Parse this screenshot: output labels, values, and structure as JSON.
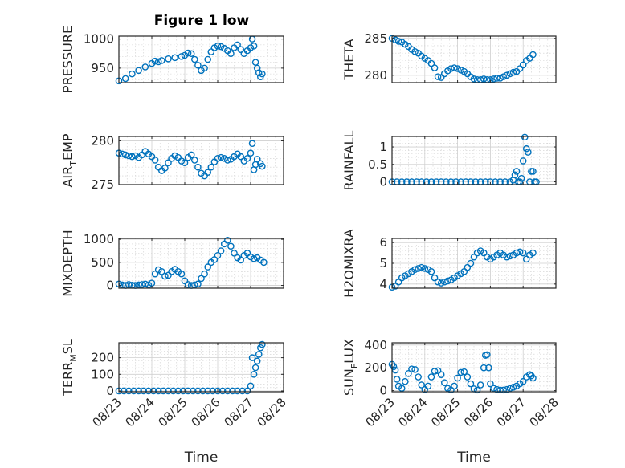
{
  "figure": {
    "title": "Figure 1 low",
    "marker_color": "#0072BD",
    "xlabel_time": "Time"
  },
  "chart_data": [
    {
      "id": "pressure",
      "type": "scatter",
      "title": "Figure 1 low",
      "ylabel": "PRESSURE",
      "ylabel_sub": "",
      "xlabel": "",
      "xtick_labels": [],
      "xlim": [
        "08/23",
        "08/28"
      ],
      "ylim": [
        925,
        1005
      ],
      "yticks": [
        950,
        1000
      ],
      "yticks_labels": [
        "950",
        "1000"
      ],
      "grid": true,
      "series": [
        {
          "x": [
            23.0,
            23.2,
            23.4,
            23.6,
            23.8,
            24.0,
            24.1,
            24.2,
            24.3,
            24.5,
            24.7,
            24.9,
            25.0,
            25.1,
            25.2,
            25.3,
            25.4,
            25.5,
            25.6,
            25.7,
            25.8,
            25.9,
            26.0,
            26.1,
            26.2,
            26.3,
            26.4,
            26.5,
            26.6,
            26.7,
            26.8,
            26.9,
            27.0,
            27.05,
            27.1,
            27.15,
            27.2,
            27.25,
            27.3,
            27.35
          ],
          "y": [
            928,
            932,
            940,
            946,
            952,
            958,
            962,
            961,
            963,
            966,
            968,
            970,
            972,
            976,
            975,
            965,
            955,
            946,
            950,
            965,
            978,
            985,
            988,
            987,
            984,
            980,
            975,
            985,
            990,
            982,
            975,
            980,
            985,
            1000,
            988,
            960,
            950,
            942,
            935,
            940
          ]
        }
      ]
    },
    {
      "id": "theta",
      "type": "scatter",
      "ylabel": "THETA",
      "ylabel_sub": "",
      "xlabel": "",
      "xtick_labels": [],
      "xlim": [
        "08/23",
        "08/28"
      ],
      "ylim": [
        279,
        285.3
      ],
      "yticks": [
        280,
        285
      ],
      "yticks_labels": [
        "280",
        "285"
      ],
      "grid": true,
      "series": [
        {
          "x": [
            23.0,
            23.1,
            23.2,
            23.3,
            23.4,
            23.5,
            23.6,
            23.7,
            23.8,
            23.9,
            24.0,
            24.1,
            24.2,
            24.3,
            24.4,
            24.5,
            24.6,
            24.7,
            24.8,
            24.9,
            25.0,
            25.1,
            25.2,
            25.3,
            25.4,
            25.5,
            25.6,
            25.7,
            25.8,
            25.9,
            26.0,
            26.1,
            26.2,
            26.3,
            26.4,
            26.5,
            26.6,
            26.7,
            26.8,
            26.9,
            27.0,
            27.1,
            27.2,
            27.3
          ],
          "y": [
            285.0,
            284.8,
            284.6,
            284.5,
            284.2,
            283.9,
            283.5,
            283.2,
            283.0,
            282.6,
            282.3,
            282.0,
            281.6,
            281.0,
            279.8,
            279.7,
            280.2,
            280.6,
            280.9,
            281.0,
            280.9,
            280.7,
            280.5,
            280.2,
            279.8,
            279.5,
            279.4,
            279.4,
            279.5,
            279.4,
            279.4,
            279.5,
            279.6,
            279.6,
            279.8,
            280.0,
            280.2,
            280.4,
            280.5,
            280.9,
            281.4,
            282.0,
            282.3,
            282.8
          ]
        }
      ]
    },
    {
      "id": "air_temp",
      "type": "scatter",
      "ylabel": "AIR",
      "ylabel_sub": "T",
      "ylabel_tail": "EMP",
      "xlabel": "",
      "xtick_labels": [],
      "xlim": [
        "08/23",
        "08/28"
      ],
      "ylim": [
        275,
        280.5
      ],
      "yticks": [
        275,
        280
      ],
      "yticks_labels": [
        "275",
        "280"
      ],
      "grid": true,
      "series": [
        {
          "x": [
            23.0,
            23.1,
            23.2,
            23.3,
            23.4,
            23.5,
            23.6,
            23.7,
            23.8,
            23.9,
            24.0,
            24.1,
            24.2,
            24.3,
            24.4,
            24.5,
            24.6,
            24.7,
            24.8,
            24.9,
            25.0,
            25.1,
            25.2,
            25.3,
            25.4,
            25.5,
            25.6,
            25.7,
            25.8,
            25.9,
            26.0,
            26.1,
            26.2,
            26.3,
            26.4,
            26.5,
            26.6,
            26.7,
            26.8,
            26.9,
            27.0,
            27.05,
            27.1,
            27.15,
            27.2,
            27.3,
            27.35
          ],
          "y": [
            278.6,
            278.5,
            278.4,
            278.3,
            278.2,
            278.3,
            278.1,
            278.4,
            278.8,
            278.5,
            278.2,
            277.8,
            277.0,
            276.6,
            276.9,
            277.5,
            278.0,
            278.3,
            278.1,
            277.7,
            277.5,
            278.1,
            278.4,
            277.8,
            277.0,
            276.3,
            276.0,
            276.4,
            277.0,
            277.6,
            278.0,
            278.1,
            278.0,
            277.8,
            277.9,
            278.2,
            278.5,
            278.2,
            277.7,
            278.0,
            278.6,
            279.7,
            276.7,
            277.3,
            277.9,
            277.4,
            277.1
          ]
        }
      ]
    },
    {
      "id": "rainfall",
      "type": "scatter",
      "ylabel": "RAINFALL",
      "ylabel_sub": "",
      "xlabel": "",
      "xtick_labels": [],
      "xlim": [
        "08/23",
        "08/28"
      ],
      "ylim": [
        -0.08,
        1.3
      ],
      "yticks": [
        0,
        0.5,
        1
      ],
      "yticks_labels": [
        "0",
        "0.5",
        "1"
      ],
      "grid": true,
      "series": [
        {
          "x": [
            23.0,
            23.15,
            23.3,
            23.45,
            23.6,
            23.75,
            23.9,
            24.05,
            24.2,
            24.35,
            24.5,
            24.65,
            24.8,
            24.95,
            25.1,
            25.25,
            25.4,
            25.55,
            25.7,
            25.85,
            26.0,
            26.15,
            26.3,
            26.45,
            26.6,
            26.7,
            26.75,
            26.8,
            26.85,
            26.9,
            26.95,
            27.0,
            27.05,
            27.1,
            27.15,
            27.2,
            27.25,
            27.3,
            27.35,
            27.4
          ],
          "y": [
            0,
            0,
            0,
            0,
            0,
            0,
            0,
            0,
            0,
            0,
            0,
            0,
            0,
            0,
            0,
            0,
            0,
            0,
            0,
            0,
            0,
            0,
            0,
            0,
            0,
            0.05,
            0.2,
            0.3,
            0,
            0,
            0.1,
            0.6,
            1.28,
            0.95,
            0.85,
            0,
            0.3,
            0.3,
            0,
            0
          ]
        }
      ]
    },
    {
      "id": "mixdepth",
      "type": "scatter",
      "ylabel": "MIXDEPTH",
      "ylabel_sub": "",
      "xlabel": "",
      "xtick_labels": [],
      "xlim": [
        "08/23",
        "08/28"
      ],
      "ylim": [
        -60,
        1020
      ],
      "yticks": [
        0,
        500,
        1000
      ],
      "yticks_labels": [
        "0",
        "500",
        "1000"
      ],
      "grid": true,
      "series": [
        {
          "x": [
            23.0,
            23.1,
            23.2,
            23.3,
            23.4,
            23.5,
            23.6,
            23.7,
            23.8,
            23.9,
            24.0,
            24.1,
            24.2,
            24.3,
            24.4,
            24.5,
            24.6,
            24.7,
            24.8,
            24.9,
            25.0,
            25.1,
            25.2,
            25.3,
            25.4,
            25.5,
            25.6,
            25.7,
            25.8,
            25.9,
            26.0,
            26.1,
            26.2,
            26.3,
            26.4,
            26.5,
            26.6,
            26.7,
            26.8,
            26.9,
            27.0,
            27.1,
            27.2,
            27.3,
            27.4
          ],
          "y": [
            30,
            10,
            0,
            20,
            5,
            0,
            10,
            20,
            30,
            10,
            50,
            250,
            340,
            300,
            200,
            220,
            300,
            350,
            300,
            250,
            100,
            20,
            0,
            10,
            30,
            150,
            250,
            400,
            500,
            560,
            650,
            750,
            900,
            980,
            850,
            700,
            600,
            550,
            650,
            700,
            620,
            580,
            600,
            550,
            500
          ]
        }
      ]
    },
    {
      "id": "h2omixra",
      "type": "scatter",
      "ylabel": "H2OMIXRA",
      "ylabel_sub": "",
      "xlabel": "",
      "xtick_labels": [],
      "xlim": [
        "08/23",
        "08/28"
      ],
      "ylim": [
        3.8,
        6.2
      ],
      "yticks": [
        4,
        5,
        6
      ],
      "yticks_labels": [
        "4",
        "5",
        "6"
      ],
      "grid": true,
      "series": [
        {
          "x": [
            23.0,
            23.1,
            23.2,
            23.3,
            23.4,
            23.5,
            23.6,
            23.7,
            23.8,
            23.9,
            24.0,
            24.1,
            24.2,
            24.3,
            24.4,
            24.5,
            24.6,
            24.7,
            24.8,
            24.9,
            25.0,
            25.1,
            25.2,
            25.3,
            25.4,
            25.5,
            25.6,
            25.7,
            25.8,
            25.9,
            26.0,
            26.1,
            26.2,
            26.3,
            26.4,
            26.5,
            26.6,
            26.7,
            26.8,
            26.9,
            27.0,
            27.1,
            27.2,
            27.3
          ],
          "y": [
            3.85,
            3.9,
            4.1,
            4.3,
            4.4,
            4.5,
            4.6,
            4.7,
            4.75,
            4.8,
            4.75,
            4.7,
            4.6,
            4.3,
            4.1,
            4.05,
            4.1,
            4.15,
            4.2,
            4.3,
            4.4,
            4.5,
            4.6,
            4.8,
            5.0,
            5.3,
            5.5,
            5.6,
            5.5,
            5.3,
            5.2,
            5.3,
            5.4,
            5.5,
            5.4,
            5.3,
            5.35,
            5.4,
            5.5,
            5.55,
            5.5,
            5.2,
            5.4,
            5.5
          ]
        }
      ]
    },
    {
      "id": "terr_msl",
      "type": "scatter",
      "ylabel": "TERR",
      "ylabel_sub": "M",
      "ylabel_tail": "SL",
      "xlabel": "Time",
      "xtick_labels": [
        "08/23",
        "08/24",
        "08/25",
        "08/26",
        "08/27",
        "08/28"
      ],
      "xlim": [
        "08/23",
        "08/28"
      ],
      "ylim": [
        -5,
        290
      ],
      "yticks": [
        0,
        100,
        200
      ],
      "yticks_labels": [
        "0",
        "100",
        "200"
      ],
      "grid": true,
      "series": [
        {
          "x": [
            23.0,
            23.15,
            23.3,
            23.45,
            23.6,
            23.75,
            23.9,
            24.05,
            24.2,
            24.35,
            24.5,
            24.65,
            24.8,
            24.95,
            25.1,
            25.25,
            25.4,
            25.55,
            25.7,
            25.85,
            26.0,
            26.15,
            26.3,
            26.45,
            26.6,
            26.75,
            26.9,
            27.0,
            27.05,
            27.1,
            27.15,
            27.2,
            27.25,
            27.3,
            27.35
          ],
          "y": [
            0,
            0,
            0,
            0,
            0,
            0,
            0,
            0,
            0,
            0,
            0,
            0,
            0,
            0,
            0,
            0,
            0,
            0,
            0,
            0,
            0,
            0,
            0,
            0,
            0,
            0,
            0,
            30,
            200,
            100,
            140,
            180,
            220,
            260,
            280
          ]
        }
      ]
    },
    {
      "id": "sun_flux",
      "type": "scatter",
      "ylabel": "SUN",
      "ylabel_sub": "F",
      "ylabel_tail": "LUX",
      "xlabel": "Time",
      "xtick_labels": [
        "08/23",
        "08/24",
        "08/25",
        "08/26",
        "08/27",
        "08/28"
      ],
      "xlim": [
        "08/23",
        "08/28"
      ],
      "ylim": [
        -10,
        420
      ],
      "yticks": [
        0,
        200,
        400
      ],
      "yticks_labels": [
        "0",
        "200",
        "400"
      ],
      "grid": true,
      "series": [
        {
          "x": [
            23.0,
            23.05,
            23.1,
            23.15,
            23.2,
            23.3,
            23.4,
            23.5,
            23.6,
            23.7,
            23.8,
            23.9,
            24.0,
            24.1,
            24.2,
            24.3,
            24.4,
            24.5,
            24.6,
            24.7,
            24.8,
            24.9,
            25.0,
            25.1,
            25.2,
            25.3,
            25.4,
            25.5,
            25.6,
            25.7,
            25.8,
            25.85,
            25.9,
            25.95,
            26.0,
            26.1,
            26.2,
            26.3,
            26.4,
            26.5,
            26.6,
            26.7,
            26.8,
            26.9,
            27.0,
            27.1,
            27.2,
            27.25,
            27.3
          ],
          "y": [
            230,
            210,
            180,
            100,
            40,
            20,
            80,
            150,
            190,
            185,
            120,
            50,
            10,
            40,
            120,
            170,
            175,
            140,
            70,
            20,
            5,
            40,
            110,
            160,
            165,
            120,
            60,
            15,
            5,
            50,
            200,
            310,
            315,
            200,
            60,
            20,
            10,
            5,
            5,
            10,
            20,
            30,
            40,
            60,
            80,
            120,
            140,
            130,
            110
          ]
        }
      ]
    }
  ]
}
